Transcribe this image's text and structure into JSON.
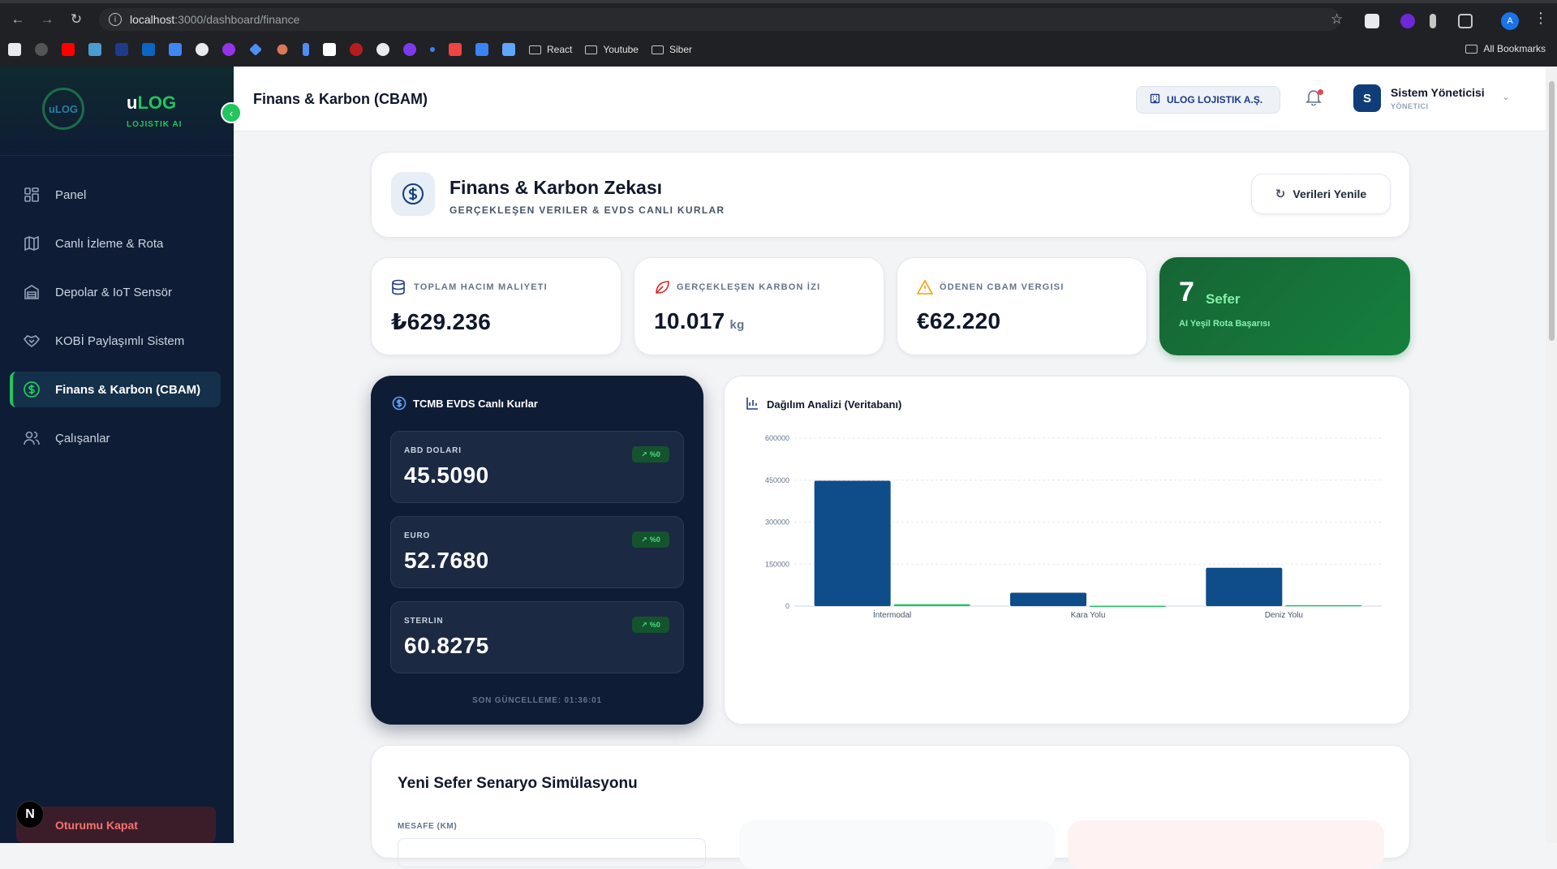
{
  "browser": {
    "url_host": "localhost",
    "url_path": ":3000/dashboard/finance",
    "bookmarks": [
      "React",
      "Youtube",
      "Siber"
    ],
    "all_bookmarks": "All Bookmarks",
    "profile_initial": "A"
  },
  "sidebar": {
    "brand_u": "u",
    "brand_log": "LOG",
    "brand_sub": "LOJISTIK AI",
    "logo_text": "uLOG",
    "items": [
      {
        "label": "Panel",
        "icon": "grid-icon"
      },
      {
        "label": "Canlı İzleme & Rota",
        "icon": "map-icon"
      },
      {
        "label": "Depolar & IoT Sensör",
        "icon": "warehouse-icon"
      },
      {
        "label": "KOBİ Paylaşımlı Sistem",
        "icon": "handshake-icon"
      },
      {
        "label": "Finans & Karbon (CBAM)",
        "icon": "dollar-circle-icon",
        "active": true
      },
      {
        "label": "Çalışanlar",
        "icon": "users-icon"
      }
    ],
    "logout": "Oturumu Kapat",
    "next_badge": "N"
  },
  "topbar": {
    "title": "Finans & Karbon (CBAM)",
    "company": "ULOG LOJISTIK A.Ş.",
    "user_initial": "S",
    "user_name": "Sistem Yöneticisi",
    "user_role": "YÖNETICI"
  },
  "hero": {
    "title": "Finans & Karbon Zekası",
    "subtitle": "GERÇEKLEŞEN VERILER & EVDS CANLI KURLAR",
    "refresh": "Verileri Yenile"
  },
  "stats": [
    {
      "label": "TOPLAM HACIM MALIYETI",
      "value": "₺629.236",
      "unit": "",
      "color": "#1e3a8a"
    },
    {
      "label": "GERÇEKLEŞEN KARBON İZI",
      "value": "10.017",
      "unit": "kg",
      "color": "#dc2626"
    },
    {
      "label": "ÖDENEN CBAM VERGISI",
      "value": "€62.220",
      "unit": "",
      "color": "#f59e0b"
    }
  ],
  "green_stat": {
    "number": "7",
    "word": "Sefer",
    "subtitle": "AI Yeşil Rota Başarısı"
  },
  "rates": {
    "title": "TCMB EVDS Canlı Kurlar",
    "items": [
      {
        "label": "ABD DOLARI",
        "value": "45.5090",
        "badge": "%0"
      },
      {
        "label": "EURO",
        "value": "52.7680",
        "badge": "%0"
      },
      {
        "label": "STERLIN",
        "value": "60.8275",
        "badge": "%0"
      }
    ],
    "last_update": "SON GÜNCELLEME: 01:36:01"
  },
  "chart_card": {
    "title": "Dağılım Analizi (Veritabanı)"
  },
  "chart_data": {
    "type": "bar",
    "categories": [
      "İntermodal",
      "Kara Yolu",
      "Deniz Yolu"
    ],
    "series": [
      {
        "values": [
          448000,
          48000,
          137000
        ],
        "color": "#0f4c8a"
      },
      {
        "values": [
          7000,
          1500,
          3500
        ],
        "color": "#22c55e"
      }
    ],
    "ylim": [
      0,
      600000
    ],
    "yticks": [
      0,
      150000,
      300000,
      450000,
      600000
    ],
    "grid": true
  },
  "simulation": {
    "title": "Yeni Sefer Senaryo Simülasyonu",
    "distance_label": "MESAFE (KM)"
  }
}
